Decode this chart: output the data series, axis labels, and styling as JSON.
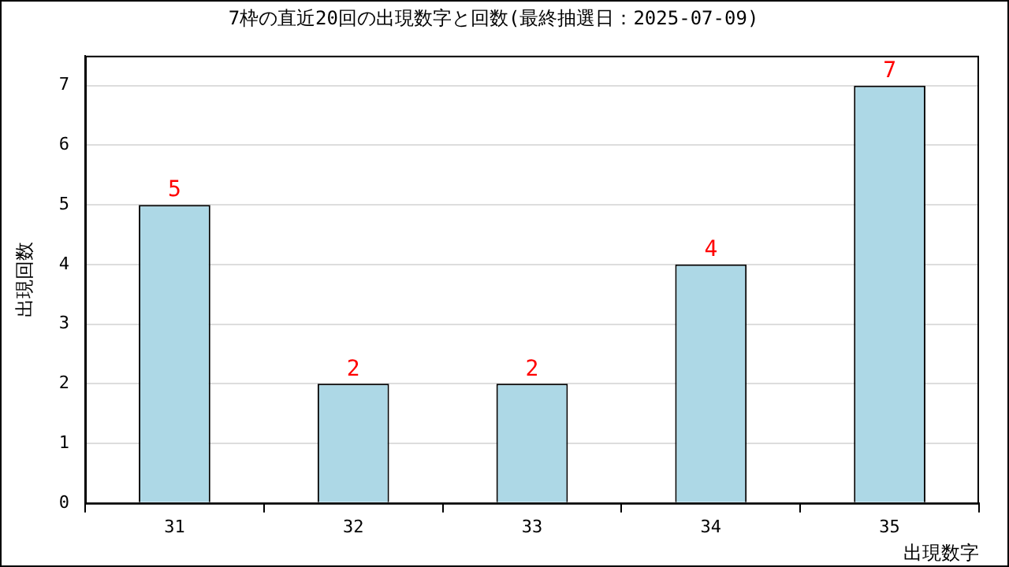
{
  "chart_data": {
    "type": "bar",
    "title": "7枠の直近20回の出現数字と回数(最終抽選日：2025-07-09)",
    "xlabel": "出現数字",
    "ylabel": "出現回数",
    "categories": [
      "31",
      "32",
      "33",
      "34",
      "35"
    ],
    "values": [
      5,
      2,
      2,
      4,
      7
    ],
    "color": "#add8e6",
    "ylim": [
      0,
      7.5
    ],
    "yticks": [
      0,
      1,
      2,
      3,
      4,
      5,
      6,
      7
    ],
    "grid": "y",
    "data_labels": true,
    "legend": false
  }
}
